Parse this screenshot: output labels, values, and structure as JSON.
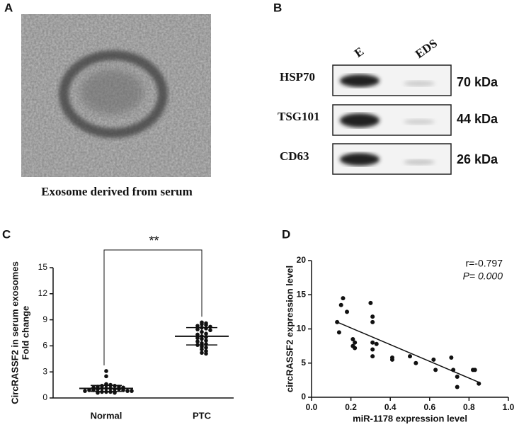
{
  "panels": {
    "a": {
      "label": "A",
      "caption": "Exosome derived from serum"
    },
    "b": {
      "label": "B",
      "lanes": [
        "E",
        "EDS"
      ],
      "rows": [
        {
          "protein": "HSP70",
          "size": "70 kDa"
        },
        {
          "protein": "TSG101",
          "size": "44 kDa"
        },
        {
          "protein": "CD63",
          "size": "26 kDa"
        }
      ]
    },
    "c": {
      "label": "C"
    },
    "d": {
      "label": "D"
    }
  },
  "chart_data": [
    {
      "type": "dotplot",
      "categories": [
        "Normal",
        "PTC"
      ],
      "ylabel": [
        "CircRASSF2 in serum exosomes",
        "Fold change"
      ],
      "values": [
        [
          3.1,
          2.5,
          1.6,
          1.5,
          1.5,
          1.4,
          1.4,
          1.3,
          1.3,
          1.2,
          1.2,
          1.1,
          1.1,
          1.1,
          1.0,
          1.0,
          1.0,
          0.9,
          0.9,
          0.9,
          0.8,
          0.8,
          0.8,
          0.7,
          0.7,
          0.7,
          0.6,
          0.6
        ],
        [
          8.7,
          8.6,
          8.5,
          8.4,
          8.3,
          8.2,
          8.1,
          8.0,
          7.9,
          7.8,
          7.6,
          7.4,
          7.3,
          7.1,
          7.0,
          6.9,
          6.8,
          6.6,
          6.5,
          6.3,
          6.2,
          6.1,
          5.9,
          5.8,
          5.6,
          5.4,
          5.2,
          5.1
        ]
      ],
      "means": [
        1.1,
        7.1
      ],
      "sds": [
        0.35,
        1.0
      ],
      "annotation": "**",
      "ylim": [
        0,
        15
      ],
      "yticks": [
        0,
        3,
        6,
        9,
        12,
        15
      ],
      "color": "#111111"
    },
    {
      "type": "scatter",
      "xlabel": "miR-1178 expression level",
      "ylabel": "circRASSF2 expression level",
      "x": [
        0.13,
        0.14,
        0.15,
        0.16,
        0.18,
        0.21,
        0.21,
        0.22,
        0.22,
        0.3,
        0.31,
        0.31,
        0.31,
        0.31,
        0.31,
        0.33,
        0.41,
        0.41,
        0.5,
        0.53,
        0.62,
        0.63,
        0.71,
        0.72,
        0.74,
        0.74,
        0.82,
        0.83,
        0.85
      ],
      "values": [
        11,
        9.5,
        13.5,
        14.5,
        12.5,
        8.5,
        7.5,
        7.2,
        8.0,
        13.8,
        11.8,
        11,
        8,
        7,
        6,
        7.8,
        5.8,
        5.5,
        6,
        5,
        5.5,
        4,
        5.8,
        4,
        3,
        1.5,
        4,
        4,
        2
      ],
      "fit_x": [
        0.13,
        0.85
      ],
      "fit_y": [
        11,
        2.2
      ],
      "annotations": [
        "r=-0.797",
        "P= 0.000"
      ],
      "xlim": [
        0,
        1
      ],
      "xticks": [
        {
          "value": 0,
          "label": "0.0"
        },
        0.2,
        0.4,
        0.6,
        0.8,
        {
          "value": 1,
          "label": "1.0"
        }
      ],
      "ylim": [
        0,
        20
      ],
      "yticks": [
        0,
        5,
        10,
        15,
        20
      ],
      "color": "#111111"
    }
  ]
}
